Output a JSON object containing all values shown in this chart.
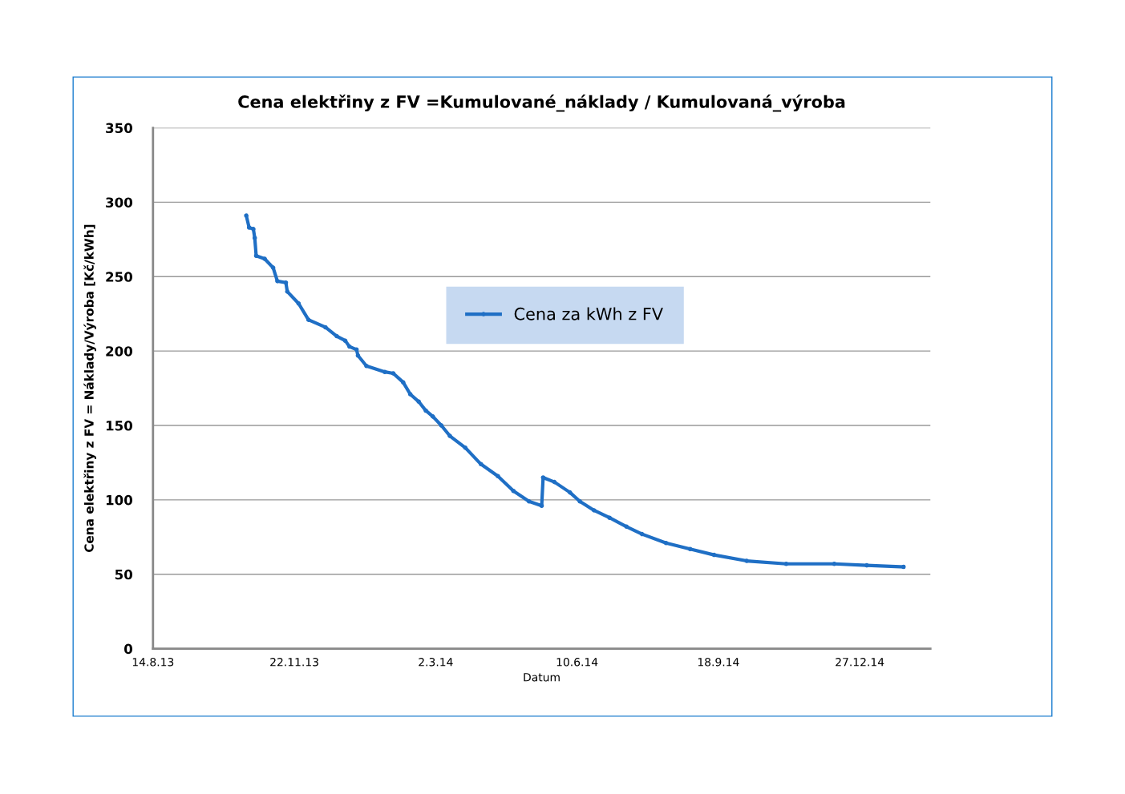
{
  "chart_data": {
    "type": "line",
    "title": "Cena elektřiny z FV =Kumulované_náklady / Kumulovaná_výroba",
    "xlabel": "Datum",
    "ylabel": "Cena elektřiny z FV = Náklady/Výroba [Kč/kWh]",
    "x": [
      "2013-10-19",
      "2013-10-21",
      "2013-10-24",
      "2013-10-25",
      "2013-10-26",
      "2013-11-01",
      "2013-11-07",
      "2013-11-10",
      "2013-11-16",
      "2013-11-17",
      "2013-11-25",
      "2013-12-02",
      "2013-12-14",
      "2013-12-22",
      "2013-12-28",
      "2013-12-31",
      "2014-01-05",
      "2014-01-06",
      "2014-01-12",
      "2014-01-25",
      "2014-01-31",
      "2014-02-07",
      "2014-02-12",
      "2014-02-18",
      "2014-02-23",
      "2014-02-28",
      "2014-03-06",
      "2014-03-12",
      "2014-03-23",
      "2014-04-03",
      "2014-04-15",
      "2014-04-26",
      "2014-05-07",
      "2014-05-16",
      "2014-05-17",
      "2014-05-25",
      "2014-06-05",
      "2014-06-12",
      "2014-06-22",
      "2014-07-03",
      "2014-07-15",
      "2014-07-26",
      "2014-08-12",
      "2014-08-29",
      "2014-09-15",
      "2014-10-08",
      "2014-11-05",
      "2014-12-09",
      "2015-01-01",
      "2015-01-27"
    ],
    "series": [
      {
        "name": "Cena za kWh z FV",
        "color": "#1f6fc5",
        "values": [
          291,
          283,
          282,
          276,
          264,
          262,
          256,
          247,
          246,
          240,
          232,
          221,
          216,
          210,
          207,
          203,
          201,
          197,
          190,
          186,
          185,
          179,
          171,
          166,
          160,
          156,
          150,
          143,
          135,
          124,
          116,
          106,
          99,
          96,
          115,
          112,
          105,
          99,
          93,
          88,
          82,
          77,
          71,
          67,
          63,
          59,
          57,
          57,
          56,
          55
        ]
      }
    ],
    "xlim": [
      "2013-08-14",
      "2015-02-15"
    ],
    "xticks": [
      {
        "value": "2013-08-14",
        "label": "14.8.13"
      },
      {
        "value": "2013-11-22",
        "label": "22.11.13"
      },
      {
        "value": "2014-03-02",
        "label": "2.3.14"
      },
      {
        "value": "2014-06-10",
        "label": "10.6.14"
      },
      {
        "value": "2014-09-18",
        "label": "18.9.14"
      },
      {
        "value": "2014-12-27",
        "label": "27.12.14"
      }
    ],
    "ylim": [
      0,
      350
    ],
    "yticks": [
      0,
      50,
      100,
      150,
      200,
      250,
      300,
      350
    ],
    "grid": "y",
    "legend": "center",
    "marker": "circle",
    "line_style": "solid"
  }
}
